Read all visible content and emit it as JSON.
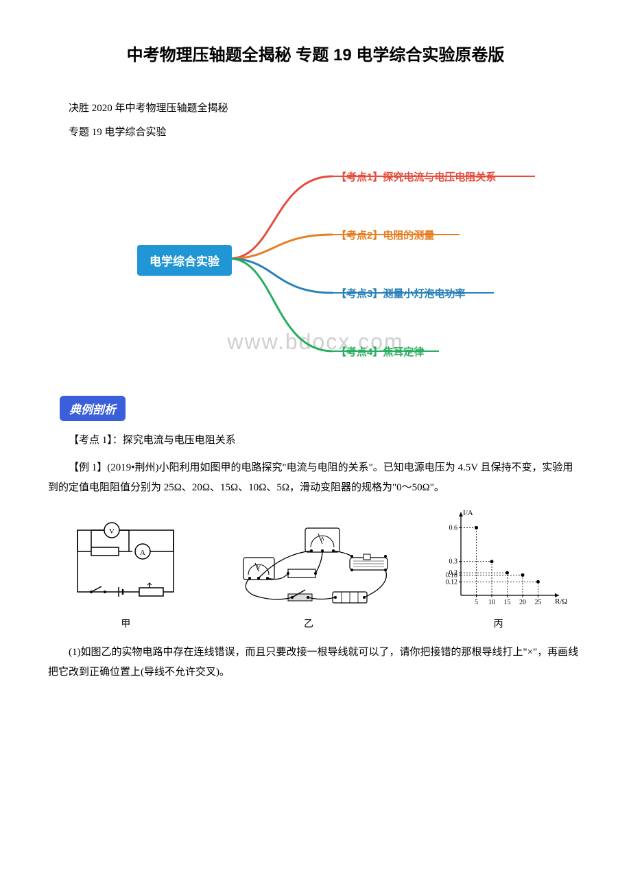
{
  "title": "中考物理压轴题全揭秘 专题 19 电学综合实验原卷版",
  "intro1": "决胜 2020 年中考物理压轴题全揭秘",
  "intro2": "专题 19 电学综合实验",
  "mindmap": {
    "root": "电学综合实验",
    "branches": [
      {
        "label": "【考点1】探究电流与电压电阻关系",
        "color": "#e74c3c"
      },
      {
        "label": "【考点2】电阻的测量",
        "color": "#e67e22"
      },
      {
        "label": "【考点3】测量小灯泡电功率",
        "color": "#2980b9"
      },
      {
        "label": "【考点4】焦耳定律",
        "color": "#27ae60"
      }
    ],
    "root_bg": "#2196d4",
    "root_fg": "#ffffff",
    "watermark": "www.bdocx.com"
  },
  "badge": "典例剖析",
  "kaodian1": "【考点 1】：探究电流与电压电阻关系",
  "example1": "【例 1】(2019•荆州)小阳利用如图甲的电路探究\"电流与电阻的关系\"。已知电源电压为 4.5V 且保持不变，实验用到的定值电阻阻值分别为 25Ω、20Ω、15Ω、10Ω、5Ω，滑动变阻器的规格为\"0～50Ω\"。",
  "figures": {
    "jia": "甲",
    "yi": "乙",
    "bing": "丙"
  },
  "chart": {
    "type": "scatter",
    "xlabel": "R/Ω",
    "ylabel": "I/A",
    "x_ticks": [
      5,
      10,
      15,
      20,
      25
    ],
    "y_ticks": [
      0.12,
      0.18,
      0.2,
      0.3,
      0.6
    ],
    "points": [
      {
        "x": 5,
        "y": 0.6
      },
      {
        "x": 10,
        "y": 0.3
      },
      {
        "x": 15,
        "y": 0.2
      },
      {
        "x": 20,
        "y": 0.18
      },
      {
        "x": 25,
        "y": 0.12
      }
    ],
    "axis_color": "#000000",
    "point_color": "#000000",
    "dash_color": "#000000",
    "xlim": [
      0,
      30
    ],
    "ylim": [
      0,
      0.7
    ]
  },
  "q1": "(1)如图乙的实物电路中存在连线错误，而且只要改接一根导线就可以了，请你把接错的那根导线打上\"×\"，再画线把它改到正确位置上(导线不允许交叉)。"
}
